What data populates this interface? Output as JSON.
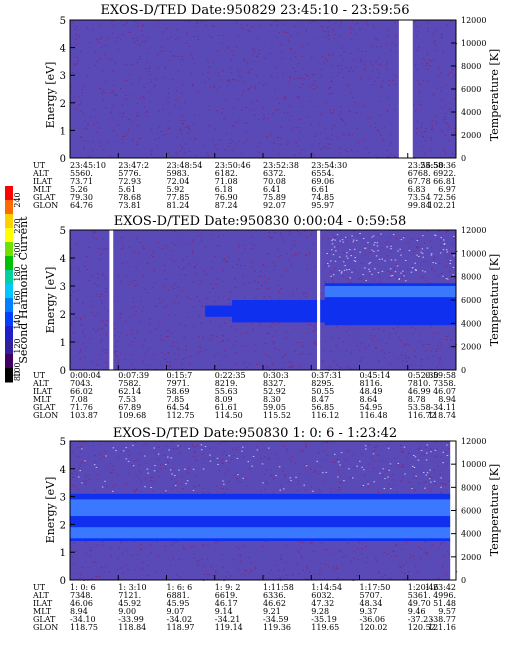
{
  "colors": {
    "background": "#5a4ab8",
    "speckle": "#7a2a7a",
    "band_blue": "#1030f0",
    "band_light": "#3a78ff",
    "gap": "#ffffff"
  },
  "colorbar": {
    "label": "Second Harmonic Current",
    "ticks": [
      "240",
      "220",
      "200",
      "180",
      "160",
      "140",
      "120",
      "100",
      "80"
    ],
    "colors": [
      "#ff0000",
      "#ff6a00",
      "#ffd000",
      "#ffff00",
      "#70e000",
      "#00c000",
      "#00d0a0",
      "#00c8ff",
      "#0080ff",
      "#0040ff",
      "#2020c8",
      "#3020a0",
      "#400060",
      "#000000"
    ]
  },
  "chart_data": [
    {
      "type": "heatmap",
      "title": "EXOS-D/TED   Date:950829  23:45:10 - 23:59:56",
      "ylabel": "Energy [eV]",
      "y2label": "Temperature [K]",
      "ylim": [
        0,
        5
      ],
      "y2lim": [
        0,
        12000
      ],
      "yticks": [
        "0",
        "1",
        "2",
        "3",
        "4",
        "5"
      ],
      "y2ticks": [
        "0",
        "2000",
        "4000",
        "6000",
        "8000",
        "10000",
        "12000"
      ],
      "bands": [],
      "gaps": [
        [
          0.852,
          0.888
        ]
      ],
      "rows": [
        {
          "label": "UT",
          "values": [
            "23:45:10",
            "23:47:2",
            "23:48:54",
            "23:50:46",
            "23:52:38",
            "23:54:30",
            "",
            "23:56:50",
            "23:58:36"
          ]
        },
        {
          "label": "ALT",
          "values": [
            "5560.",
            "5776.",
            "5983.",
            "6182.",
            "6372.",
            "6554.",
            "",
            "6768.",
            "6922."
          ]
        },
        {
          "label": "ILAT",
          "values": [
            "73.71",
            "72.93",
            "72.04",
            "71.08",
            "70.08",
            "69.06",
            "",
            "67.78",
            "66.81"
          ]
        },
        {
          "label": "MLT",
          "values": [
            "5.26",
            "5.61",
            "5.92",
            "6.18",
            "6.41",
            "6.61",
            "",
            "6.83",
            "6.97"
          ]
        },
        {
          "label": "GLAT",
          "values": [
            "79.30",
            "78.68",
            "77.85",
            "76.90",
            "75.89",
            "74.85",
            "",
            "73.54",
            "72.56"
          ]
        },
        {
          "label": "GLON",
          "values": [
            "64.76",
            "73.81",
            "81.24",
            "87.24",
            "92.07",
            "95.97",
            "",
            "99.84",
            "102.21"
          ]
        }
      ]
    },
    {
      "type": "heatmap",
      "title": "EXOS-D/TED   Date:950830  0:00:04 - 0:59:58",
      "ylabel": "Energy [eV]",
      "y2label": "Temperature [K]",
      "ylim": [
        0,
        5
      ],
      "y2lim": [
        0,
        12000
      ],
      "yticks": [
        "0",
        "1",
        "2",
        "3",
        "4",
        "5"
      ],
      "y2ticks": [
        "0",
        "2000",
        "4000",
        "6000",
        "8000",
        "10000",
        "12000"
      ],
      "bands": [
        {
          "x_from": 0.35,
          "y_from": 1.9,
          "y_to": 2.3,
          "level": "blue"
        },
        {
          "x_from": 0.42,
          "y_from": 1.7,
          "y_to": 2.5,
          "level": "blue"
        },
        {
          "x_from": 0.66,
          "y_from": 1.6,
          "y_to": 3.1,
          "level": "blue"
        },
        {
          "x_from": 0.66,
          "y_from": 2.6,
          "y_to": 3.0,
          "level": "light"
        }
      ],
      "gaps": [
        [
          0.102,
          0.112
        ],
        [
          0.64,
          0.648
        ]
      ],
      "rows": [
        {
          "label": "UT",
          "values": [
            "0:00:04",
            "0:07:39",
            "0:15:7",
            "0:22:35",
            "0:30:3",
            "0:37:31",
            "0:45:14",
            "0:52:30",
            "0:59:58"
          ]
        },
        {
          "label": "ALT",
          "values": [
            "7043.",
            "7582.",
            "7971.",
            "8219.",
            "8327.",
            "8295.",
            "8116.",
            "7810.",
            "7358."
          ]
        },
        {
          "label": "ILAT",
          "values": [
            "66.02",
            "62.14",
            "58.69",
            "55.63",
            "52.92",
            "50.55",
            "48.49",
            "46.99",
            "46.07"
          ]
        },
        {
          "label": "MLT",
          "values": [
            "7.08",
            "7.53",
            "7.85",
            "8.09",
            "8.30",
            "8.47",
            "8.64",
            "8.78",
            "8.94"
          ]
        },
        {
          "label": "GLAT",
          "values": [
            "71.76",
            "67.89",
            "64.54",
            "61.61",
            "59.05",
            "56.85",
            "54.95",
            "53.58",
            "-34.11"
          ]
        },
        {
          "label": "GLON",
          "values": [
            "103.87",
            "109.68",
            "112.75",
            "114.50",
            "115.52",
            "116.12",
            "116.48",
            "116.72",
            "118.74"
          ]
        }
      ]
    },
    {
      "type": "heatmap",
      "title": "EXOS-D/TED   Date:950830  1: 0: 6 - 1:23:42",
      "ylabel": "Energy [eV]",
      "y2label": "Temperature [K]",
      "ylim": [
        0,
        5
      ],
      "y2lim": [
        0,
        12000
      ],
      "yticks": [
        "0",
        "1",
        "2",
        "3",
        "4",
        "5"
      ],
      "y2ticks": [
        "0",
        "2000",
        "4000",
        "6000",
        "8000",
        "10000",
        "12000"
      ],
      "bands": [
        {
          "x_from": 0.0,
          "y_from": 1.4,
          "y_to": 3.1,
          "level": "blue"
        },
        {
          "x_from": 0.0,
          "y_from": 2.3,
          "y_to": 2.9,
          "level": "light"
        },
        {
          "x_from": 0.0,
          "y_from": 1.5,
          "y_to": 1.9,
          "level": "light"
        }
      ],
      "gaps": [
        [
          0.985,
          1.0
        ]
      ],
      "rows": [
        {
          "label": "UT",
          "values": [
            "1: 0: 6",
            "1: 3:10",
            "1: 6: 6",
            "1: 9: 2",
            "1:11:58",
            "1:14:54",
            "1:17:50",
            "1:20:46",
            "1:23:42"
          ]
        },
        {
          "label": "ALT",
          "values": [
            "7348.",
            "7121.",
            "6881.",
            "6619.",
            "6336.",
            "6032.",
            "5707.",
            "5361.",
            "4996."
          ]
        },
        {
          "label": "ILAT",
          "values": [
            "46.06",
            "45.92",
            "45.95",
            "46.17",
            "46.62",
            "47.32",
            "48.34",
            "49.70",
            "51.48"
          ]
        },
        {
          "label": "MLT",
          "values": [
            "8.94",
            "9.00",
            "9.07",
            "9.14",
            "9.21",
            "9.28",
            "9.37",
            "9.46",
            "9.57"
          ]
        },
        {
          "label": "GLAT",
          "values": [
            "-34.10",
            "-33.99",
            "-34.02",
            "-34.21",
            "-34.59",
            "-35.19",
            "-36.06",
            "-37.23",
            "-38.77"
          ]
        },
        {
          "label": "GLON",
          "values": [
            "118.75",
            "118.84",
            "118.97",
            "119.14",
            "119.36",
            "119.65",
            "120.02",
            "120.52",
            "121.16"
          ]
        }
      ]
    }
  ]
}
